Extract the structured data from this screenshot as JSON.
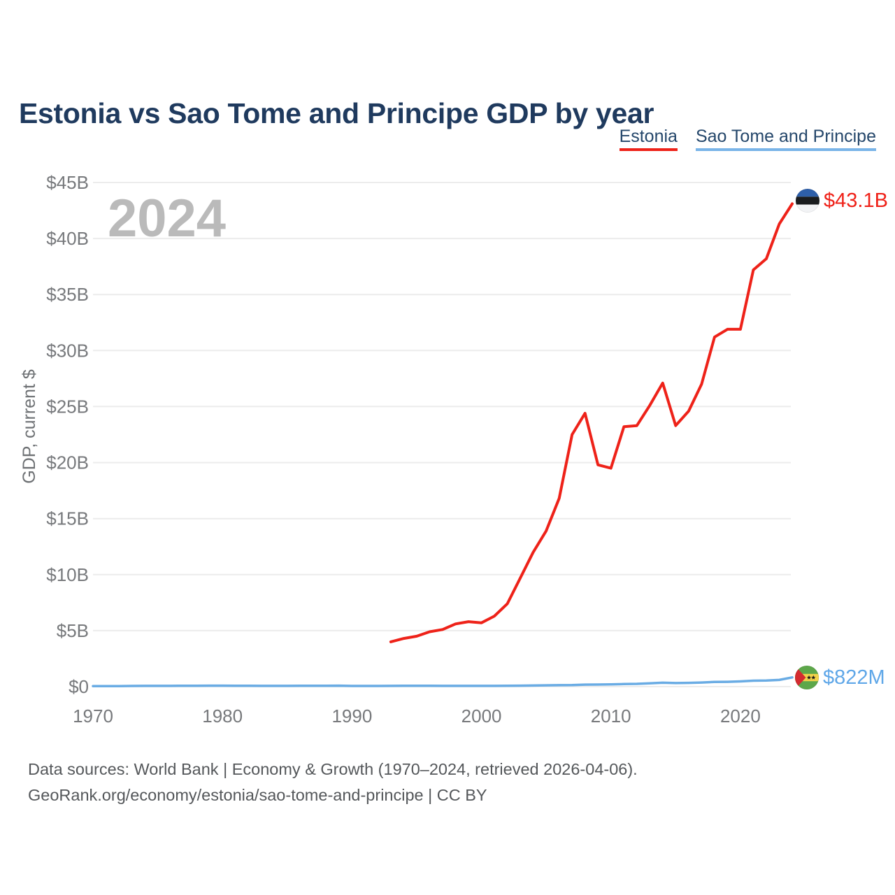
{
  "title": "Estonia vs Sao Tome and Principe GDP by year",
  "watermark": "2024",
  "legend": {
    "items": [
      {
        "label": "Estonia",
        "color": "#ee2219"
      },
      {
        "label": "Sao Tome and Principe",
        "color": "#79b4e8"
      }
    ]
  },
  "y_axis": {
    "title": "GDP, current $",
    "ticks": [
      {
        "label": "$45B",
        "value": 45
      },
      {
        "label": "$40B",
        "value": 40
      },
      {
        "label": "$35B",
        "value": 35
      },
      {
        "label": "$30B",
        "value": 30
      },
      {
        "label": "$25B",
        "value": 25
      },
      {
        "label": "$20B",
        "value": 20
      },
      {
        "label": "$15B",
        "value": 15
      },
      {
        "label": "$10B",
        "value": 10
      },
      {
        "label": "$5B",
        "value": 5
      },
      {
        "label": "$0",
        "value": 0
      }
    ]
  },
  "x_axis": {
    "ticks": [
      {
        "label": "1970",
        "value": 1970
      },
      {
        "label": "1980",
        "value": 1980
      },
      {
        "label": "1990",
        "value": 1990
      },
      {
        "label": "2000",
        "value": 2000
      },
      {
        "label": "2010",
        "value": 2010
      },
      {
        "label": "2020",
        "value": 2020
      }
    ]
  },
  "footer": {
    "line1": "Data sources: World Bank | Economy & Growth (1970–2024, retrieved 2026-04-06).",
    "line2": "GeoRank.org/economy/estonia/sao-tome-and-principe | CC BY"
  },
  "colors": {
    "estonia": "#ee2219",
    "sao_tome": "#6aace4",
    "title_text": "#1f3a5e",
    "axis_text": "#77797c",
    "watermark": "#bababa",
    "gridline": "#ececec",
    "background": "#ffffff"
  },
  "chart_data": {
    "type": "line",
    "title": "Estonia vs Sao Tome and Principe GDP by year",
    "ylabel": "GDP, current $",
    "unit": "USD billions",
    "ylim": [
      0,
      45
    ],
    "grid": "horizontal",
    "legend_position": "top-right",
    "x": [
      1970,
      1971,
      1972,
      1973,
      1974,
      1975,
      1976,
      1977,
      1978,
      1979,
      1980,
      1981,
      1982,
      1983,
      1984,
      1985,
      1986,
      1987,
      1988,
      1989,
      1990,
      1991,
      1992,
      1993,
      1994,
      1995,
      1996,
      1997,
      1998,
      1999,
      2000,
      2001,
      2002,
      2003,
      2004,
      2005,
      2006,
      2007,
      2008,
      2009,
      2010,
      2011,
      2012,
      2013,
      2014,
      2015,
      2016,
      2017,
      2018,
      2019,
      2020,
      2021,
      2022,
      2023,
      2024
    ],
    "series": [
      {
        "name": "Estonia",
        "color": "#ee2219",
        "end_label": "$43.1B",
        "values": [
          null,
          null,
          null,
          null,
          null,
          null,
          null,
          null,
          null,
          null,
          null,
          null,
          null,
          null,
          null,
          null,
          null,
          null,
          null,
          null,
          null,
          null,
          null,
          4.0,
          4.3,
          4.5,
          4.9,
          5.1,
          5.6,
          5.8,
          5.7,
          6.3,
          7.4,
          9.7,
          12.0,
          13.9,
          16.8,
          22.5,
          24.4,
          19.8,
          19.5,
          23.2,
          23.3,
          25.1,
          27.1,
          23.3,
          24.6,
          27.0,
          31.2,
          31.9,
          31.9,
          37.2,
          38.2,
          41.3,
          43.1
        ]
      },
      {
        "name": "Sao Tome and Principe",
        "color": "#6aace4",
        "end_label": "$822M",
        "values": [
          0.05,
          0.05,
          0.05,
          0.06,
          0.07,
          0.07,
          0.07,
          0.08,
          0.08,
          0.09,
          0.09,
          0.08,
          0.08,
          0.07,
          0.07,
          0.07,
          0.08,
          0.08,
          0.08,
          0.09,
          0.06,
          0.06,
          0.06,
          0.07,
          0.08,
          0.08,
          0.08,
          0.07,
          0.07,
          0.07,
          0.07,
          0.07,
          0.08,
          0.09,
          0.1,
          0.12,
          0.13,
          0.14,
          0.18,
          0.19,
          0.2,
          0.23,
          0.25,
          0.3,
          0.35,
          0.32,
          0.34,
          0.37,
          0.42,
          0.43,
          0.47,
          0.53,
          0.55,
          0.6,
          0.822
        ]
      }
    ]
  }
}
